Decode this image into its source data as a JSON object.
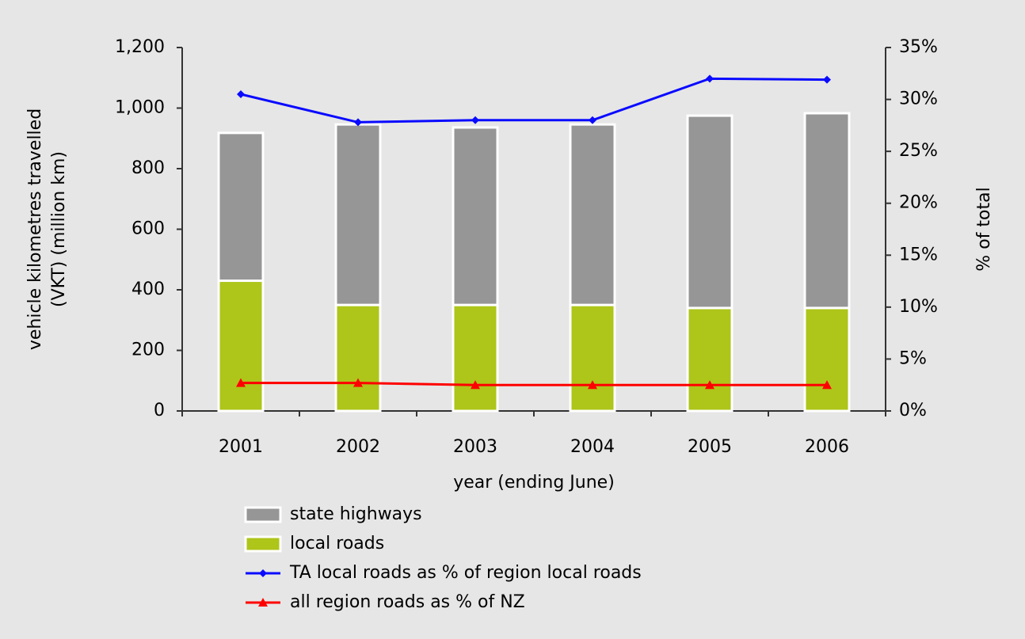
{
  "chart_data": {
    "type": "bar_line",
    "categories": [
      "2001",
      "2002",
      "2003",
      "2004",
      "2005",
      "2006"
    ],
    "x_label": "year (ending June)",
    "y_label": [
      "vehicle kilometres travelled",
      "(VKT) (million km)"
    ],
    "y2_label": "% of total",
    "series": [
      {
        "name": "state highways",
        "color": "#969696",
        "kind": "bar",
        "values": [
          488,
          596,
          586,
          596,
          635,
          643
        ]
      },
      {
        "name": "local roads",
        "color": "#aec51a",
        "kind": "bar",
        "values": [
          430,
          350,
          350,
          350,
          340,
          340
        ]
      },
      {
        "name": "TA local roads as % of region local roads",
        "color": "#0a0aff",
        "kind": "line",
        "marker": "diamond",
        "axis": "y2",
        "values": [
          30.5,
          27.8,
          28.0,
          28.0,
          32.0,
          31.9
        ]
      },
      {
        "name": "all region roads as % of NZ",
        "color": "#ff0000",
        "kind": "line",
        "marker": "triangle",
        "axis": "y2",
        "values": [
          2.7,
          2.7,
          2.5,
          2.5,
          2.5,
          2.5
        ]
      }
    ],
    "ylim": [
      0,
      1200
    ],
    "yticks": [
      0,
      200,
      400,
      600,
      800,
      {
        "value": 1000,
        "label": "1,000"
      },
      {
        "value": 1200,
        "label": "1,200"
      }
    ],
    "y2lim": [
      0,
      35
    ],
    "y2ticks": [
      {
        "value": 0,
        "label": "0%"
      },
      {
        "value": 5,
        "label": "5%"
      },
      {
        "value": 10,
        "label": "10%"
      },
      {
        "value": 15,
        "label": "15%"
      },
      {
        "value": 20,
        "label": "20%"
      },
      {
        "value": 25,
        "label": "25%"
      },
      {
        "value": 30,
        "label": "30%"
      },
      {
        "value": 35,
        "label": "35%"
      }
    ],
    "legend": "bottom"
  }
}
